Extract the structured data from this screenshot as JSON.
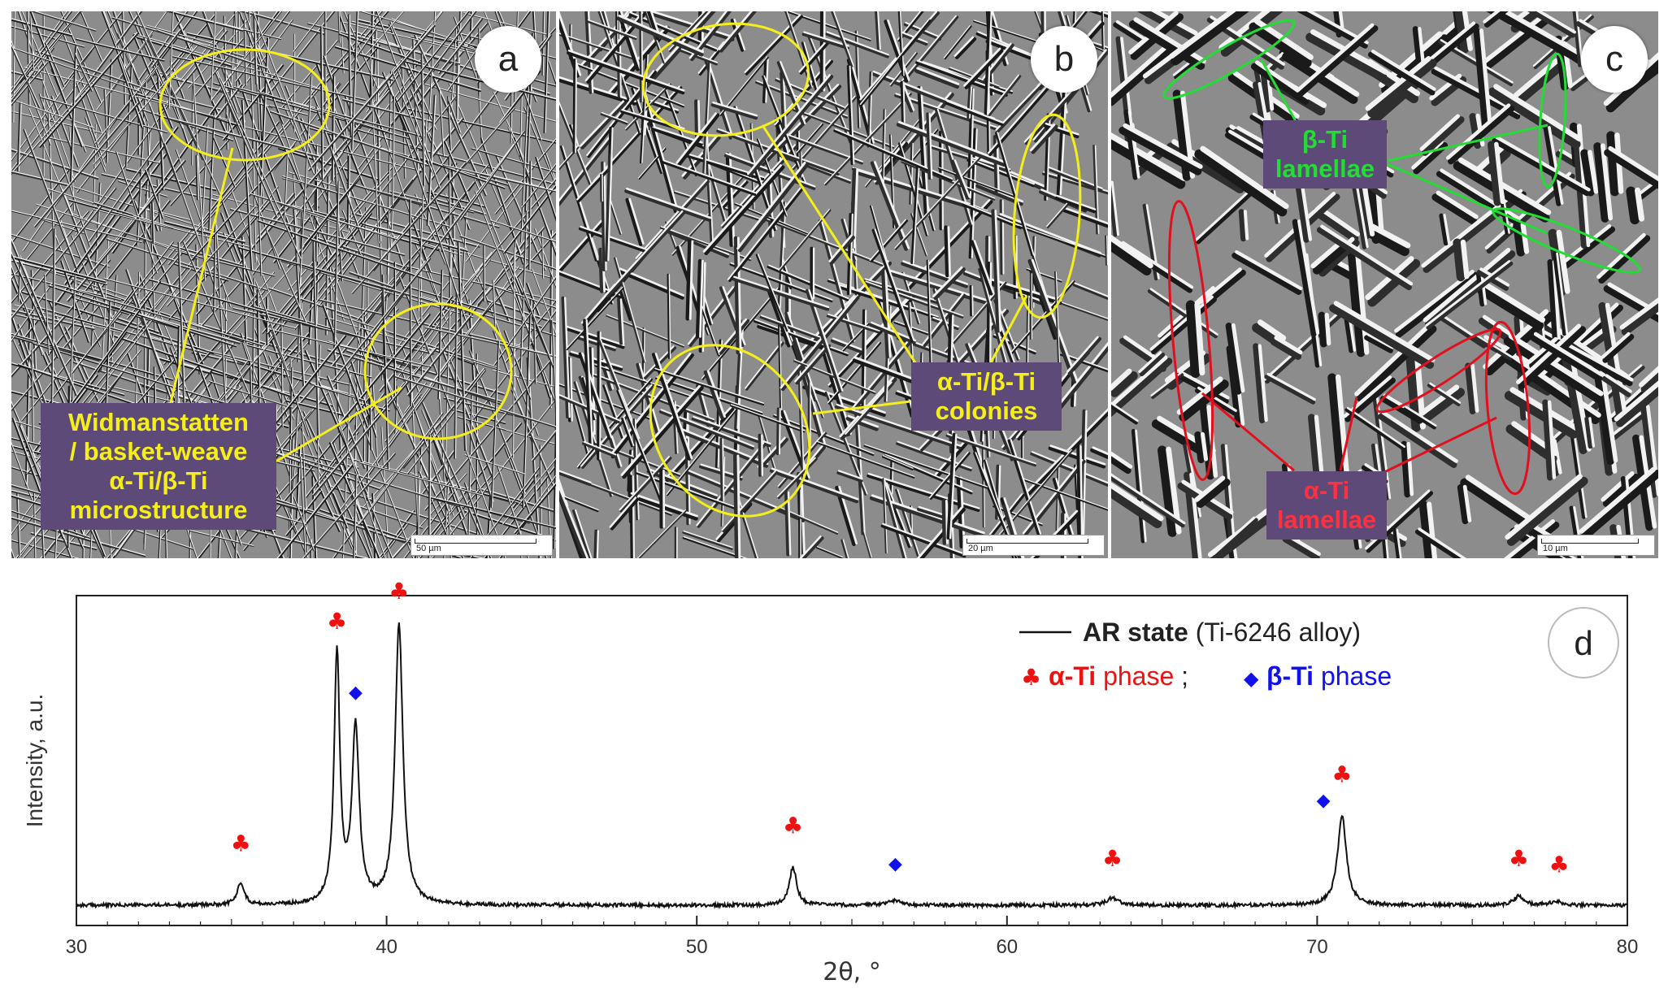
{
  "panels": [
    {
      "letter": "a",
      "scale": "50 µm",
      "labels": [
        {
          "lines": [
            "Widmanstatten",
            "/ basket-weave",
            "α-Ti/β-Ti",
            "microstructure"
          ],
          "color": "yel"
        }
      ]
    },
    {
      "letter": "b",
      "scale": "20 µm",
      "labels": [
        {
          "lines": [
            "α-Ti/β-Ti",
            "colonies"
          ],
          "color": "yel"
        }
      ]
    },
    {
      "letter": "c",
      "scale": "10 µm",
      "labels": [
        {
          "lines": [
            "β-Ti",
            "lamellae"
          ],
          "color": "grn"
        },
        {
          "lines": [
            "α-Ti",
            "lamellae"
          ],
          "color": "red"
        }
      ]
    }
  ],
  "colors": {
    "annotation_yellow": "#f4ef1a",
    "annotation_green": "#22dd33",
    "annotation_red": "#e0101e",
    "label_box": "#5e4a78",
    "alpha_marker": "#ee1111",
    "beta_marker": "#1111ee"
  },
  "chart_data": {
    "type": "line",
    "panel_letter": "d",
    "xlabel": "2θ, °",
    "ylabel": "Intensity, a.u.",
    "xlim": [
      30,
      80
    ],
    "xticks": [
      30,
      40,
      50,
      60,
      70,
      80
    ],
    "yticks_shown": false,
    "legend": {
      "placement": "top-right",
      "series_name_bold": "AR state",
      "series_name_rest": " (Ti-6246 alloy)",
      "marker_line": {
        "alpha_bold": "α-Ti",
        "alpha_rest": " phase",
        "separator": " ; ",
        "beta_bold": "β-Ti",
        "beta_rest": " phase"
      }
    },
    "series": [
      {
        "name": "AR state (Ti-6246 alloy)",
        "baseline": 0.04,
        "peaks": [
          {
            "x": 35.3,
            "y": 0.13,
            "w": 0.13
          },
          {
            "x": 38.4,
            "y": 0.87,
            "w": 0.11
          },
          {
            "x": 39.0,
            "y": 0.62,
            "w": 0.14
          },
          {
            "x": 40.4,
            "y": 0.97,
            "w": 0.15
          },
          {
            "x": 53.1,
            "y": 0.19,
            "w": 0.14
          },
          {
            "x": 56.4,
            "y": 0.06,
            "w": 0.25
          },
          {
            "x": 63.4,
            "y": 0.07,
            "w": 0.22
          },
          {
            "x": 70.8,
            "y": 0.34,
            "w": 0.17
          },
          {
            "x": 76.5,
            "y": 0.075,
            "w": 0.2
          },
          {
            "x": 77.7,
            "y": 0.055,
            "w": 0.2
          }
        ]
      }
    ],
    "markers": [
      {
        "x": 35.3,
        "y": 0.22,
        "phase": "alpha"
      },
      {
        "x": 38.4,
        "y": 0.96,
        "phase": "alpha"
      },
      {
        "x": 39.0,
        "y": 0.73,
        "phase": "beta"
      },
      {
        "x": 40.4,
        "y": 1.06,
        "phase": "alpha"
      },
      {
        "x": 53.1,
        "y": 0.28,
        "phase": "alpha"
      },
      {
        "x": 56.4,
        "y": 0.16,
        "phase": "beta"
      },
      {
        "x": 63.4,
        "y": 0.17,
        "phase": "alpha"
      },
      {
        "x": 70.2,
        "y": 0.37,
        "phase": "beta"
      },
      {
        "x": 70.8,
        "y": 0.45,
        "phase": "alpha"
      },
      {
        "x": 76.5,
        "y": 0.17,
        "phase": "alpha"
      },
      {
        "x": 77.8,
        "y": 0.15,
        "phase": "alpha"
      }
    ],
    "marker_glyphs": {
      "alpha": "♣",
      "beta": "◆"
    }
  }
}
